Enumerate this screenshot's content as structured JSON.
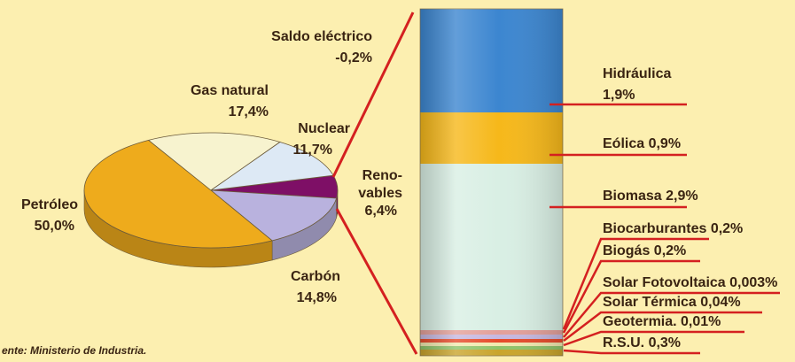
{
  "chart_data": [
    {
      "type": "pie",
      "slices": [
        {
          "label": "Petróleo",
          "value_text": "50,0%",
          "value": 50.0,
          "color": "#eeab1c"
        },
        {
          "label": "Gas natural",
          "value_text": "17,4%",
          "value": 17.4,
          "color": "#f7f3cf"
        },
        {
          "label": "Nuclear",
          "value_text": "11,7%",
          "value": 11.7,
          "color": "#dde9f5"
        },
        {
          "label": "Renovables",
          "label_lines": [
            "Reno-",
            "vables"
          ],
          "value_text": "6,4%",
          "value": 6.4,
          "color": "#7e0f66"
        },
        {
          "label": "Carbón",
          "value_text": "14,8%",
          "value": 14.8,
          "color": "#b9b2de"
        },
        {
          "label": "Saldo eléctrico",
          "value_text": "-0,2%",
          "value": -0.2,
          "color": "#fcefb0"
        }
      ]
    },
    {
      "type": "bar",
      "stacked": true,
      "series": [
        {
          "name": "Hidráulica",
          "label": "Hidráulica",
          "value_text": "1,9%",
          "value": 1.9,
          "color": "#3c86d0"
        },
        {
          "name": "Eólica",
          "label": "Eólica 0,9%",
          "value": 0.9,
          "color": "#f6b81a"
        },
        {
          "name": "Biomasa",
          "label": "Biomasa 2,9%",
          "value": 2.9,
          "color": "#d9efe4"
        },
        {
          "name": "Biocarburantes",
          "label": "Biocarburantes 0,2%",
          "value": 0.2,
          "color": "#e3a09a"
        },
        {
          "name": "Biogás",
          "label": "Biogás 0,2%",
          "value": 0.2,
          "color": "#c6b8e0"
        },
        {
          "name": "Solar Fotovoltaica",
          "label": "Solar Fotovoltaica 0,003%",
          "value": 0.003,
          "color": "#e64a2a"
        },
        {
          "name": "Solar Térmica",
          "label": "Solar Térmica 0,04%",
          "value": 0.04,
          "color": "#f1e9b0"
        },
        {
          "name": "Geotermia",
          "label": "Geotermia. 0,01%",
          "value": 0.01,
          "color": "#8fc36a"
        },
        {
          "name": "R.S.U.",
          "label": "R.S.U. 0,3%",
          "value": 0.3,
          "color": "#c9a52c"
        }
      ]
    }
  ],
  "source": "ente: Ministerio de Industria."
}
